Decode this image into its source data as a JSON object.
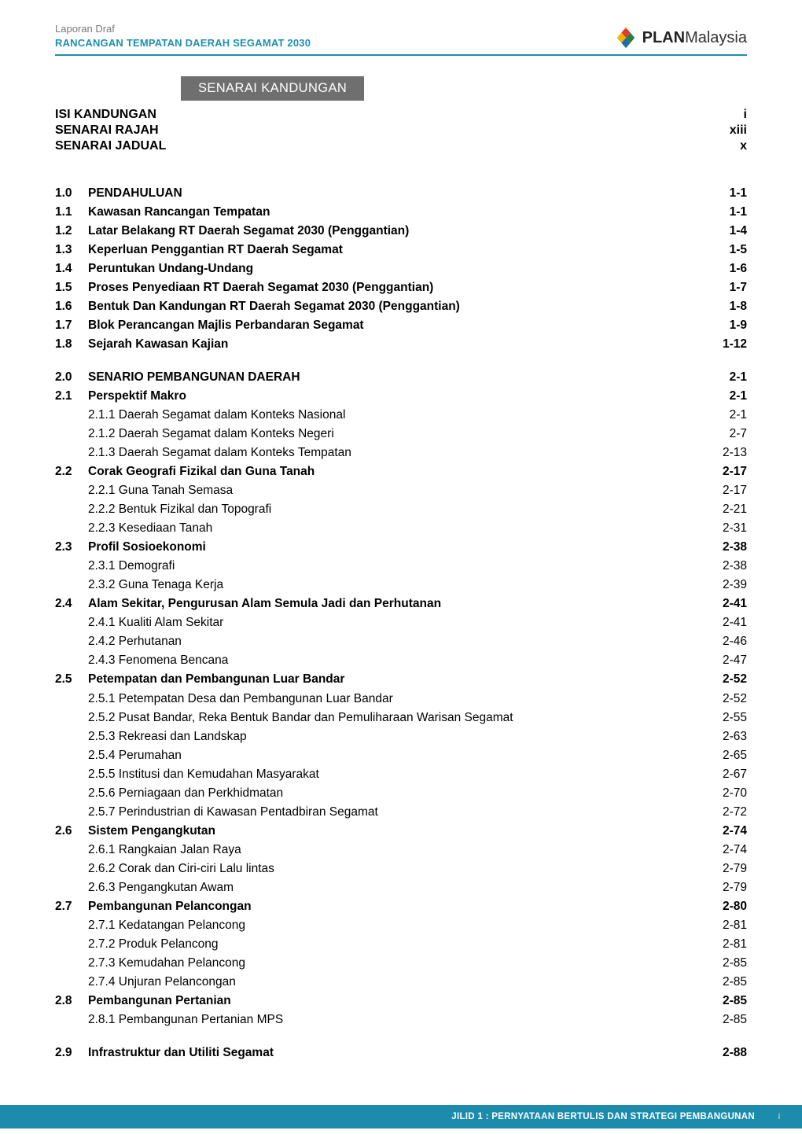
{
  "header": {
    "line1": "Laporan Draf",
    "line2": "RANCANGAN TEMPATAN DAERAH SEGAMAT 2030",
    "logo_plan": "PLAN",
    "logo_country": "Malaysia"
  },
  "band_title": "SENARAI KANDUNGAN",
  "frontmatter": [
    {
      "label": "ISI KANDUNGAN",
      "page": "i"
    },
    {
      "label": "SENARAI RAJAH",
      "page": "xiii"
    },
    {
      "label": "SENARAI JADUAL",
      "page": "x"
    }
  ],
  "sections": [
    {
      "num": "1.0",
      "title": "PENDAHULUAN",
      "page": "1-1",
      "bold": true,
      "items": [
        {
          "num": "1.1",
          "title": "Kawasan Rancangan Tempatan",
          "page": "1-1",
          "bold": true
        },
        {
          "num": "1.2",
          "title": "Latar Belakang RT Daerah Segamat 2030 (Penggantian)",
          "page": "1-4",
          "bold": true
        },
        {
          "num": "1.3",
          "title": "Keperluan Penggantian RT Daerah Segamat",
          "page": "1-5",
          "bold": true
        },
        {
          "num": "1.4",
          "title": "Peruntukan Undang-Undang",
          "page": "1-6",
          "bold": true
        },
        {
          "num": "1.5",
          "title": "Proses Penyediaan RT Daerah Segamat 2030 (Penggantian)",
          "page": "1-7",
          "bold": true
        },
        {
          "num": "1.6",
          "title": "Bentuk Dan Kandungan RT Daerah Segamat 2030 (Penggantian)",
          "page": "1-8",
          "bold": true
        },
        {
          "num": "1.7",
          "title": "Blok Perancangan Majlis Perbandaran Segamat",
          "page": "1-9",
          "bold": true
        },
        {
          "num": "1.8",
          "title": "Sejarah Kawasan Kajian",
          "page": "1-12",
          "bold": true
        }
      ]
    },
    {
      "num": "2.0",
      "title": "SENARIO PEMBANGUNAN DAERAH",
      "page": "2-1",
      "bold": true,
      "items": [
        {
          "num": "2.1",
          "title": "Perspektif Makro",
          "page": "2-1",
          "bold": true
        },
        {
          "num": "",
          "title": "2.1.1 Daerah Segamat dalam Konteks Nasional",
          "page": "2-1",
          "bold": false
        },
        {
          "num": "",
          "title": "2.1.2 Daerah Segamat dalam Konteks Negeri",
          "page": "2-7",
          "bold": false
        },
        {
          "num": "",
          "title": "2.1.3 Daerah Segamat dalam Konteks Tempatan",
          "page": "2-13",
          "bold": false
        },
        {
          "num": "2.2",
          "title": "Corak Geografi Fizikal dan Guna Tanah",
          "page": "2-17",
          "bold": true
        },
        {
          "num": "",
          "title": "2.2.1 Guna Tanah Semasa",
          "page": "2-17",
          "bold": false
        },
        {
          "num": "",
          "title": "2.2.2 Bentuk Fizikal dan Topografi",
          "page": "2-21",
          "bold": false
        },
        {
          "num": "",
          "title": "2.2.3 Kesediaan Tanah",
          "page": "2-31",
          "bold": false
        },
        {
          "num": "2.3",
          "title": "Profil Sosioekonomi",
          "page": "2-38",
          "bold": true
        },
        {
          "num": "",
          "title": "2.3.1 Demografi",
          "page": "2-38",
          "bold": false
        },
        {
          "num": "",
          "title": "2.3.2 Guna Tenaga Kerja",
          "page": "2-39",
          "bold": false
        },
        {
          "num": "2.4",
          "title": "Alam Sekitar, Pengurusan Alam Semula Jadi dan Perhutanan",
          "page": "2-41",
          "bold": true
        },
        {
          "num": "",
          "title": "2.4.1 Kualiti Alam Sekitar",
          "page": "2-41",
          "bold": false
        },
        {
          "num": "",
          "title": "2.4.2 Perhutanan",
          "page": "2-46",
          "bold": false
        },
        {
          "num": "",
          "title": "2.4.3 Fenomena Bencana",
          "page": "2-47",
          "bold": false
        },
        {
          "num": "2.5",
          "title": "Petempatan dan Pembangunan Luar Bandar",
          "page": "2-52",
          "bold": true
        },
        {
          "num": "",
          "title": "2.5.1 Petempatan Desa dan Pembangunan Luar Bandar",
          "page": "2-52",
          "bold": false
        },
        {
          "num": "",
          "title": "2.5.2 Pusat Bandar, Reka Bentuk Bandar dan Pemuliharaan Warisan Segamat",
          "page": "2-55",
          "bold": false
        },
        {
          "num": "",
          "title": "2.5.3 Rekreasi dan Landskap",
          "page": "2-63",
          "bold": false
        },
        {
          "num": "",
          "title": "2.5.4 Perumahan",
          "page": "2-65",
          "bold": false
        },
        {
          "num": "",
          "title": "2.5.5 Institusi dan Kemudahan Masyarakat",
          "page": "2-67",
          "bold": false
        },
        {
          "num": "",
          "title": "2.5.6 Perniagaan dan Perkhidmatan",
          "page": "2-70",
          "bold": false
        },
        {
          "num": "",
          "title": "2.5.7 Perindustrian di Kawasan Pentadbiran Segamat",
          "page": "2-72",
          "bold": false
        },
        {
          "num": "2.6",
          "title": "Sistem Pengangkutan",
          "page": "2-74",
          "bold": true
        },
        {
          "num": "",
          "title": "2.6.1 Rangkaian Jalan Raya",
          "page": "2-74",
          "bold": false
        },
        {
          "num": "",
          "title": "2.6.2 Corak dan Ciri-ciri Lalu lintas",
          "page": "2-79",
          "bold": false
        },
        {
          "num": "",
          "title": "2.6.3 Pengangkutan Awam",
          "page": "2-79",
          "bold": false
        },
        {
          "num": "2.7",
          "title": "Pembangunan Pelancongan",
          "page": "2-80",
          "bold": true
        },
        {
          "num": "",
          "title": "2.7.1 Kedatangan Pelancong",
          "page": "2-81",
          "bold": false
        },
        {
          "num": "",
          "title": "2.7.2 Produk Pelancong",
          "page": "2-81",
          "bold": false
        },
        {
          "num": "",
          "title": "2.7.3 Kemudahan Pelancong",
          "page": "2-85",
          "bold": false
        },
        {
          "num": "",
          "title": "2.7.4 Unjuran Pelancongan",
          "page": "2-85",
          "bold": false
        },
        {
          "num": "2.8",
          "title": "Pembangunan Pertanian",
          "page": "2-85",
          "bold": true
        },
        {
          "num": "",
          "title": "2.8.1 Pembangunan Pertanian MPS",
          "page": "2-85",
          "bold": false
        }
      ],
      "trailing_gap": true,
      "tail": [
        {
          "num": "2.9",
          "title": "Infrastruktur dan Utiliti Segamat",
          "page": "2-88",
          "bold": true
        }
      ]
    }
  ],
  "footer": {
    "text": "JILID 1  : PERNYATAAN BERTULIS DAN STRATEGI PEMBANGUNAN",
    "page_number": "i"
  },
  "colors": {
    "rule": "#1f8fb0",
    "band_bg": "#6f6f6f",
    "footer_bg": "#1d8bab"
  }
}
